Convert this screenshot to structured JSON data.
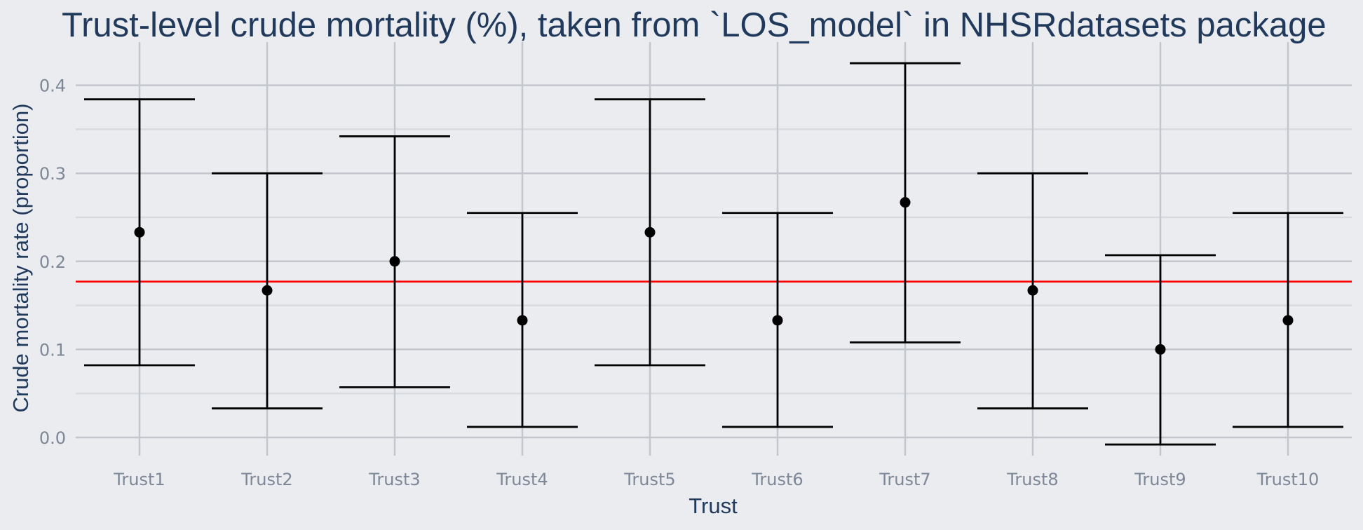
{
  "chart_data": {
    "type": "errorbar",
    "title": "Trust-level crude mortality (%), taken from `LOS_model` in NHSRdatasets package",
    "xlabel": "Trust",
    "ylabel": "Crude mortality rate (proportion)",
    "ylim": [
      -0.022,
      0.44
    ],
    "yticks": [
      0.0,
      0.1,
      0.2,
      0.3,
      0.4
    ],
    "ytick_labels": [
      "0.0",
      "0.1",
      "0.2",
      "0.3",
      "0.4"
    ],
    "categories": [
      "Trust1",
      "Trust2",
      "Trust3",
      "Trust4",
      "Trust5",
      "Trust6",
      "Trust7",
      "Trust8",
      "Trust9",
      "Trust10"
    ],
    "values": [
      0.233,
      0.167,
      0.2,
      0.133,
      0.233,
      0.133,
      0.267,
      0.167,
      0.1,
      0.133
    ],
    "lower": [
      0.082,
      0.033,
      0.057,
      0.012,
      0.082,
      0.012,
      0.108,
      0.033,
      -0.008,
      0.012
    ],
    "upper": [
      0.384,
      0.3,
      0.342,
      0.255,
      0.384,
      0.255,
      0.425,
      0.3,
      0.207,
      0.255
    ],
    "reference_line": 0.177,
    "colors": {
      "background": "#EAECF0",
      "reference_line": "#FF0000",
      "points": "#000000",
      "title": "#213A5C"
    }
  }
}
